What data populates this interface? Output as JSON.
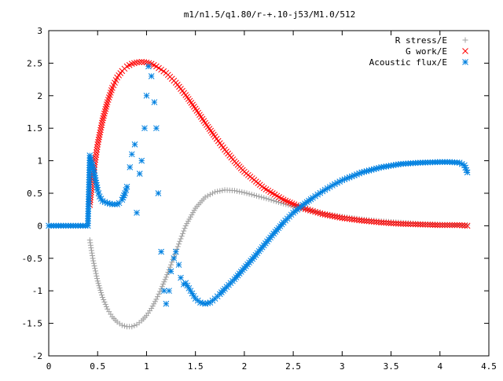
{
  "chart_data": {
    "type": "scatter",
    "title": "m1/n1.5/q1.80/r-+.10-j53/M1.0/512",
    "xlabel": "",
    "ylabel": "",
    "xlim": [
      0,
      4.5
    ],
    "ylim": [
      -2,
      3
    ],
    "grid": false,
    "legend_position": "top-right",
    "x_ticks": [
      "0",
      "0.5",
      "1",
      "1.5",
      "2",
      "2.5",
      "3",
      "3.5",
      "4",
      "4.5"
    ],
    "y_ticks": [
      "-2",
      "-1.5",
      "-1",
      "-0.5",
      "0",
      "0.5",
      "1",
      "1.5",
      "2",
      "2.5",
      "3"
    ],
    "series": [
      {
        "name": "R stress/E",
        "marker": "plus",
        "color": "#a0a0a0",
        "x": [
          0.42,
          0.45,
          0.5,
          0.55,
          0.6,
          0.65,
          0.7,
          0.75,
          0.8,
          0.85,
          0.9,
          0.95,
          1.0,
          1.05,
          1.1,
          1.15,
          1.2,
          1.25,
          1.3,
          1.35,
          1.4,
          1.5,
          1.6,
          1.7,
          1.8,
          1.9,
          2.0,
          2.2,
          2.4,
          2.6,
          2.8,
          3.0,
          3.2,
          3.4,
          3.6,
          3.8,
          4.0,
          4.2,
          4.28
        ],
        "y": [
          -0.22,
          -0.5,
          -0.85,
          -1.1,
          -1.28,
          -1.4,
          -1.48,
          -1.53,
          -1.55,
          -1.55,
          -1.52,
          -1.46,
          -1.38,
          -1.27,
          -1.13,
          -0.97,
          -0.79,
          -0.6,
          -0.4,
          -0.2,
          0.0,
          0.27,
          0.44,
          0.52,
          0.55,
          0.54,
          0.51,
          0.43,
          0.34,
          0.26,
          0.19,
          0.14,
          0.1,
          0.07,
          0.05,
          0.03,
          0.02,
          0.01,
          0.01
        ]
      },
      {
        "name": "G work/E",
        "marker": "cross",
        "color": "#ff0000",
        "x": [
          0.42,
          0.45,
          0.48,
          0.5,
          0.55,
          0.6,
          0.65,
          0.7,
          0.75,
          0.8,
          0.85,
          0.9,
          0.95,
          1.0,
          1.05,
          1.1,
          1.2,
          1.3,
          1.4,
          1.5,
          1.6,
          1.7,
          1.8,
          1.9,
          2.0,
          2.2,
          2.4,
          2.6,
          2.8,
          3.0,
          3.2,
          3.4,
          3.6,
          3.8,
          4.0,
          4.2,
          4.28
        ],
        "y": [
          0.32,
          0.75,
          1.05,
          1.25,
          1.62,
          1.9,
          2.12,
          2.28,
          2.38,
          2.45,
          2.49,
          2.51,
          2.52,
          2.51,
          2.49,
          2.45,
          2.35,
          2.2,
          2.01,
          1.8,
          1.58,
          1.37,
          1.17,
          0.99,
          0.83,
          0.58,
          0.4,
          0.27,
          0.18,
          0.12,
          0.08,
          0.05,
          0.03,
          0.02,
          0.01,
          0.01,
          0.0
        ]
      },
      {
        "name": "Acoustic flux/E",
        "marker": "star",
        "color": "#0080e0",
        "x": [
          0.0,
          0.05,
          0.1,
          0.15,
          0.2,
          0.25,
          0.3,
          0.35,
          0.4,
          0.42,
          0.44,
          0.46,
          0.48,
          0.5,
          0.52,
          0.55,
          0.6,
          0.65,
          0.7,
          0.72,
          0.75,
          0.78,
          0.8,
          0.83,
          0.85,
          0.88,
          0.9,
          0.93,
          0.95,
          0.98,
          1.0,
          1.02,
          1.05,
          1.08,
          1.1,
          1.12,
          1.15,
          1.18,
          1.2,
          1.23,
          1.25,
          1.28,
          1.3,
          1.33,
          1.35,
          1.38,
          1.4,
          1.45,
          1.5,
          1.55,
          1.6,
          1.65,
          1.7,
          1.75,
          1.8,
          1.9,
          2.0,
          2.1,
          2.2,
          2.3,
          2.4,
          2.5,
          2.6,
          2.7,
          2.8,
          2.9,
          3.0,
          3.2,
          3.4,
          3.6,
          3.8,
          4.0,
          4.1,
          4.2,
          4.25,
          4.28
        ],
        "y": [
          0.0,
          0.0,
          0.0,
          0.0,
          0.0,
          0.0,
          0.0,
          0.0,
          0.0,
          1.08,
          0.98,
          0.85,
          0.7,
          0.55,
          0.45,
          0.38,
          0.35,
          0.33,
          0.33,
          0.35,
          0.4,
          0.5,
          0.6,
          0.9,
          1.1,
          1.25,
          0.2,
          0.8,
          1.0,
          1.5,
          2.0,
          2.45,
          2.3,
          1.9,
          1.5,
          0.5,
          -0.4,
          -1.0,
          -1.2,
          -1.0,
          -0.7,
          -0.5,
          -0.4,
          -0.6,
          -0.8,
          -0.9,
          -0.88,
          -1.0,
          -1.12,
          -1.18,
          -1.2,
          -1.18,
          -1.12,
          -1.05,
          -0.97,
          -0.82,
          -0.65,
          -0.48,
          -0.3,
          -0.12,
          0.05,
          0.2,
          0.32,
          0.43,
          0.53,
          0.62,
          0.7,
          0.82,
          0.9,
          0.95,
          0.97,
          0.98,
          0.98,
          0.97,
          0.93,
          0.82
        ]
      }
    ]
  }
}
